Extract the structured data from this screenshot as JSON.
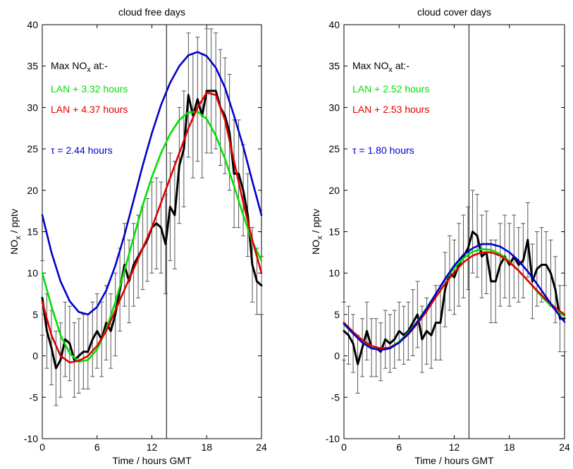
{
  "chart_data": [
    {
      "type": "line",
      "title": "cloud free days",
      "xlabel": "Time / hours GMT",
      "ylabel_main": "NO",
      "ylabel_sub": "x",
      "ylabel_rest": " / pptv",
      "xlim": [
        0,
        24
      ],
      "ylim": [
        -10,
        40
      ],
      "xticks": [
        "0",
        "6",
        "12",
        "18",
        "24"
      ],
      "yticks": [
        "-10",
        "-5",
        "0",
        "5",
        "10",
        "15",
        "20",
        "25",
        "30",
        "35",
        "40"
      ],
      "vline_x": 13.6,
      "annotations": {
        "max_main": "Max NO",
        "max_sub": "x",
        "max_rest": " at:-",
        "green_label": "LAN +  3.32 hours",
        "red_label": "LAN +  4.37 hours",
        "blue_label": "τ =  2.44 hours"
      },
      "series": [
        {
          "color": "#000000",
          "x": [
            0.0,
            0.5,
            1.0,
            1.5,
            2.0,
            2.5,
            3.0,
            3.5,
            4.0,
            4.5,
            5.0,
            5.5,
            6.0,
            6.5,
            7.0,
            7.5,
            8.0,
            8.5,
            9.0,
            9.5,
            10.0,
            10.5,
            11.0,
            11.5,
            12.0,
            12.5,
            13.0,
            13.5,
            14.0,
            14.5,
            15.0,
            15.5,
            16.0,
            16.5,
            17.0,
            17.5,
            18.0,
            18.5,
            19.0,
            19.5,
            20.0,
            20.5,
            21.0,
            21.5,
            22.0,
            22.5,
            23.0,
            23.5,
            24.0
          ],
          "y": [
            7,
            3,
            1,
            -1.5,
            -0.5,
            2,
            1.5,
            -0.5,
            0,
            0.5,
            0.5,
            2,
            3,
            2,
            4,
            3,
            5,
            8,
            11,
            9,
            11,
            12,
            13,
            14,
            15.5,
            16,
            15.5,
            13.5,
            18,
            17,
            23,
            25,
            31.5,
            29,
            31,
            29,
            32,
            32,
            32,
            30,
            29,
            27,
            22,
            22,
            20,
            17,
            11,
            9,
            8.5
          ]
        },
        {
          "color": "#00e000",
          "x": [
            0,
            1,
            2,
            3,
            4,
            5,
            6,
            7,
            8,
            9,
            10,
            11,
            12,
            13,
            14,
            15,
            16,
            17,
            18,
            19,
            20,
            21,
            22,
            23,
            24
          ],
          "y": [
            10.0,
            6.0,
            2.5,
            0.3,
            -0.7,
            -0.5,
            0.8,
            3.2,
            6.5,
            10.3,
            14.3,
            18.2,
            21.6,
            24.5,
            26.8,
            28.5,
            29.4,
            29.5,
            28.6,
            26.6,
            23.8,
            20.5,
            17.0,
            13.8,
            11.5
          ]
        },
        {
          "color": "#e00000",
          "x": [
            0,
            1,
            2,
            3,
            4,
            5,
            6,
            7,
            8,
            9,
            10,
            11,
            12,
            13,
            14,
            15,
            16,
            17,
            18,
            19,
            20,
            21,
            22,
            23,
            24
          ],
          "y": [
            6.5,
            2.5,
            0.0,
            -0.8,
            -0.6,
            0.0,
            1.2,
            3.0,
            5.5,
            8.0,
            10.5,
            13.0,
            15.5,
            18.5,
            21.5,
            24.5,
            27.5,
            30.0,
            31.8,
            31.5,
            28.5,
            23.5,
            18.5,
            14.0,
            10.0
          ]
        },
        {
          "color": "#0000cc",
          "x": [
            0,
            1,
            2,
            3,
            4,
            5,
            6,
            7,
            8,
            9,
            10,
            11,
            12,
            13,
            14,
            15,
            16,
            17,
            18,
            19,
            20,
            21,
            22,
            23,
            24
          ],
          "y": [
            17.0,
            12.5,
            9.0,
            6.6,
            5.3,
            5.0,
            5.9,
            7.9,
            10.9,
            14.6,
            18.8,
            23.0,
            26.9,
            30.3,
            33.0,
            35.0,
            36.3,
            36.7,
            36.2,
            34.8,
            32.4,
            29.0,
            25.3,
            21.1,
            17.0
          ]
        }
      ],
      "error_bars": {
        "x": [
          0.0,
          0.5,
          1.0,
          1.5,
          2.0,
          2.5,
          3.0,
          3.5,
          4.0,
          4.5,
          5.0,
          5.5,
          6.0,
          6.5,
          7.0,
          7.5,
          8.0,
          8.5,
          9.0,
          9.5,
          10.0,
          10.5,
          11.0,
          11.5,
          12.0,
          12.5,
          13.0,
          13.5,
          14.0,
          14.5,
          15.0,
          15.5,
          16.0,
          16.5,
          17.0,
          17.5,
          18.0,
          18.5,
          19.0,
          19.5,
          20.0,
          20.5,
          21.0,
          21.5,
          22.0,
          22.5,
          23.0,
          23.5,
          24.0
        ],
        "half_width": [
          4.5,
          4.5,
          4.5,
          4.5,
          4.5,
          4.5,
          4.5,
          4.5,
          4.5,
          4.5,
          4.5,
          4.5,
          4.5,
          4.5,
          4.5,
          4.5,
          5,
          5,
          5,
          5,
          5,
          5,
          5,
          5,
          5.5,
          5.5,
          5.5,
          6,
          6.5,
          6.5,
          7,
          7,
          7.5,
          7.5,
          7.5,
          7.5,
          7.5,
          7.5,
          7,
          7,
          7,
          7,
          6.5,
          6.5,
          5.5,
          5,
          4.5,
          4,
          3.5
        ]
      }
    },
    {
      "type": "line",
      "title": "cloud cover days",
      "xlabel": "Time / hours GMT",
      "ylabel_main": "NO",
      "ylabel_sub": "x",
      "ylabel_rest": " / pptv",
      "xlim": [
        0,
        24
      ],
      "ylim": [
        -10,
        40
      ],
      "xticks": [
        "0",
        "6",
        "12",
        "18",
        "24"
      ],
      "yticks": [
        "-10",
        "-5",
        "0",
        "5",
        "10",
        "15",
        "20",
        "25",
        "30",
        "35",
        "40"
      ],
      "vline_x": 13.6,
      "annotations": {
        "max_main": "Max NO",
        "max_sub": "x",
        "max_rest": " at:-",
        "green_label": "LAN +  2.52 hours",
        "red_label": "LAN +  2.53 hours",
        "blue_label": "τ =  1.80 hours"
      },
      "series": [
        {
          "color": "#000000",
          "x": [
            0.0,
            0.5,
            1.0,
            1.5,
            2.0,
            2.5,
            3.0,
            3.5,
            4.0,
            4.5,
            5.0,
            5.5,
            6.0,
            6.5,
            7.0,
            7.5,
            8.0,
            8.5,
            9.0,
            9.5,
            10.0,
            10.5,
            11.0,
            11.5,
            12.0,
            12.5,
            13.0,
            13.5,
            14.0,
            14.5,
            15.0,
            15.5,
            16.0,
            16.5,
            17.0,
            17.5,
            18.0,
            18.5,
            19.0,
            19.5,
            20.0,
            20.5,
            21.0,
            21.5,
            22.0,
            22.5,
            23.0,
            23.5,
            24.0
          ],
          "y": [
            3,
            2.5,
            1.5,
            -1,
            1,
            3,
            1,
            1,
            0.5,
            2,
            1.5,
            2,
            3,
            2.5,
            3,
            4,
            5,
            2,
            3,
            2.5,
            4,
            4,
            8,
            10,
            9.5,
            11,
            12,
            13,
            15,
            14.5,
            12,
            12.5,
            9,
            9,
            11,
            12,
            11,
            12,
            11,
            11.5,
            14,
            9,
            10.5,
            11,
            11,
            10,
            8,
            4.5,
            4.5
          ]
        },
        {
          "color": "#00e000",
          "x": [
            0,
            1,
            2,
            3,
            4,
            5,
            6,
            7,
            8,
            9,
            10,
            11,
            12,
            13,
            14,
            15,
            16,
            17,
            18,
            19,
            20,
            21,
            22,
            23,
            24
          ],
          "y": [
            3.8,
            2.7,
            1.7,
            1.0,
            0.8,
            1.0,
            1.7,
            2.8,
            4.2,
            5.8,
            7.5,
            9.2,
            10.6,
            11.8,
            12.6,
            12.9,
            12.8,
            12.3,
            11.4,
            10.3,
            9.1,
            7.8,
            6.6,
            5.6,
            4.8
          ]
        },
        {
          "color": "#e00000",
          "x": [
            0,
            1,
            2,
            3,
            4,
            5,
            6,
            7,
            8,
            9,
            10,
            11,
            12,
            13,
            14,
            15,
            16,
            17,
            18,
            19,
            20,
            21,
            22,
            23,
            24
          ],
          "y": [
            4.0,
            2.9,
            1.9,
            1.2,
            0.9,
            1.0,
            1.6,
            2.6,
            3.9,
            5.4,
            7.1,
            8.7,
            10.1,
            11.3,
            12.1,
            12.5,
            12.5,
            12.1,
            11.3,
            10.3,
            9.1,
            7.9,
            6.8,
            5.8,
            5.0
          ]
        },
        {
          "color": "#0000cc",
          "x": [
            0,
            1,
            2,
            3,
            4,
            5,
            6,
            7,
            8,
            9,
            10,
            11,
            12,
            13,
            14,
            15,
            16,
            17,
            18,
            19,
            20,
            21,
            22,
            23,
            24
          ],
          "y": [
            3.9,
            2.7,
            1.6,
            0.9,
            0.7,
            0.9,
            1.6,
            2.7,
            4.1,
            5.7,
            7.5,
            9.3,
            10.9,
            12.2,
            13.0,
            13.5,
            13.5,
            13.2,
            12.5,
            11.5,
            10.2,
            8.7,
            7.1,
            5.5,
            4.1
          ]
        }
      ],
      "error_bars": {
        "x": [
          0.0,
          0.5,
          1.0,
          1.5,
          2.0,
          2.5,
          3.0,
          3.5,
          4.0,
          4.5,
          5.0,
          5.5,
          6.0,
          6.5,
          7.0,
          7.5,
          8.0,
          8.5,
          9.0,
          9.5,
          10.0,
          10.5,
          11.0,
          11.5,
          12.0,
          12.5,
          13.0,
          13.5,
          14.0,
          14.5,
          15.0,
          15.5,
          16.0,
          16.5,
          17.0,
          17.5,
          18.0,
          18.5,
          19.0,
          19.5,
          20.0,
          20.5,
          21.0,
          21.5,
          22.0,
          22.5,
          23.0,
          23.5,
          24.0
        ],
        "half_width": [
          3.5,
          3.5,
          3.5,
          3.5,
          3.5,
          3.5,
          3.5,
          3.5,
          3.5,
          3.5,
          3.5,
          3.5,
          3.5,
          3.5,
          3.5,
          4,
          4,
          4,
          4,
          4,
          4.5,
          4.5,
          4.5,
          4.5,
          4.5,
          5,
          5,
          5,
          5,
          5,
          5,
          5,
          5,
          5,
          5,
          5,
          5,
          5,
          4.5,
          4.5,
          4.5,
          4.5,
          4.5,
          4.5,
          4,
          4,
          4,
          4,
          4
        ]
      }
    }
  ]
}
